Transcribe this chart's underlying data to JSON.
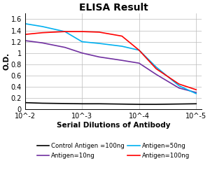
{
  "title": "ELISA Result",
  "ylabel": "O.D.",
  "xlabel": "Serial Dilutions of Antibody",
  "xlim_left": 0.01,
  "xlim_right": 8e-06,
  "ylim": [
    0,
    1.7
  ],
  "yticks": [
    0,
    0.2,
    0.4,
    0.6,
    0.8,
    1.0,
    1.2,
    1.4,
    1.6
  ],
  "xticks": [
    0.01,
    0.001,
    0.0001,
    1e-05
  ],
  "xtick_labels": [
    "10^-2",
    "10^-3",
    "10^-4",
    "10^-5"
  ],
  "background_color": "#ffffff",
  "grid_color": "#bbbbbb",
  "lines": [
    {
      "label": "Control Antigen =100ng",
      "color": "#000000",
      "x": [
        0.01,
        0.005,
        0.001,
        0.0005,
        0.0001,
        5e-05,
        1e-05
      ],
      "y": [
        0.12,
        0.11,
        0.1,
        0.1,
        0.09,
        0.09,
        0.1
      ]
    },
    {
      "label": "Antigen=10ng",
      "color": "#7030a0",
      "x": [
        0.01,
        0.005,
        0.002,
        0.001,
        0.0005,
        0.0002,
        0.0001,
        5e-05,
        2e-05,
        1e-05
      ],
      "y": [
        1.22,
        1.18,
        1.1,
        1.0,
        0.93,
        0.87,
        0.82,
        0.62,
        0.38,
        0.3
      ]
    },
    {
      "label": "Antigen=50ng",
      "color": "#00b0f0",
      "x": [
        0.01,
        0.005,
        0.002,
        0.001,
        0.0005,
        0.0002,
        0.0001,
        5e-05,
        2e-05,
        1e-05
      ],
      "y": [
        1.52,
        1.47,
        1.38,
        1.2,
        1.17,
        1.12,
        1.05,
        0.75,
        0.42,
        0.28
      ]
    },
    {
      "label": "Antigen=100ng",
      "color": "#ff0000",
      "x": [
        0.01,
        0.005,
        0.002,
        0.001,
        0.0005,
        0.0002,
        0.0001,
        5e-05,
        2e-05,
        1e-05
      ],
      "y": [
        1.33,
        1.36,
        1.38,
        1.38,
        1.37,
        1.3,
        1.05,
        0.72,
        0.45,
        0.35
      ]
    }
  ],
  "legend_fontsize": 6.2,
  "title_fontsize": 10,
  "axis_label_fontsize": 7.5,
  "tick_fontsize": 7
}
